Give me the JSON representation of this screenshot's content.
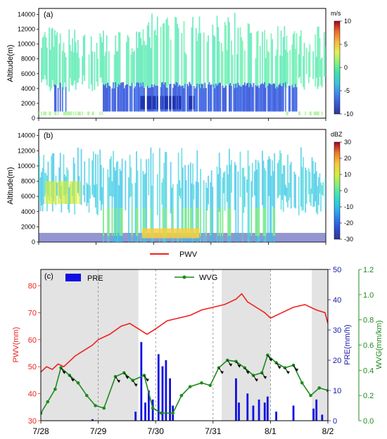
{
  "chart_data": [
    {
      "panel": "(a)",
      "type": "heatmap",
      "ylabel": "Altitude(m)",
      "yticks": [
        0,
        2000,
        4000,
        6000,
        8000,
        10000,
        12000,
        14000
      ],
      "ylim": [
        0,
        14800
      ],
      "colorbar": {
        "unit": "m/s",
        "ticks": [
          10,
          5,
          0,
          -5,
          -10
        ],
        "range": [
          -10,
          10
        ],
        "colors": [
          "#313695",
          "#3a57d6",
          "#3c8cf0",
          "#3ec5d8",
          "#39e3b0",
          "#8ff07a",
          "#e6f050",
          "#f7b73a",
          "#ef6a2a",
          "#a50026"
        ]
      },
      "features": [
        {
          "desc": "upper layer",
          "alt_range": [
            5000,
            12000
          ],
          "value_approx": 0
        },
        {
          "desc": "lower layer",
          "alt_range": [
            1000,
            5000
          ],
          "value_approx": -6
        },
        {
          "desc": "near surface",
          "alt_range": [
            400,
            900
          ],
          "value_approx": 1
        }
      ]
    },
    {
      "panel": "(b)",
      "type": "heatmap",
      "ylabel": "Altitude(m)",
      "yticks": [
        0,
        2000,
        4000,
        6000,
        8000,
        10000,
        12000,
        14000
      ],
      "ylim": [
        0,
        14800
      ],
      "colorbar": {
        "unit": "dBZ",
        "ticks": [
          30,
          20,
          10,
          0,
          -10,
          -20,
          -30
        ],
        "range": [
          -30,
          30
        ],
        "colors": [
          "#313695",
          "#2b4fd6",
          "#2a84f2",
          "#2fbfe8",
          "#36e2c4",
          "#7ff07c",
          "#d6ee3c",
          "#f7c93a",
          "#ef7a2a",
          "#a50026"
        ]
      }
    },
    {
      "panel": "(c)",
      "type": "line",
      "x_tick_labels": [
        "7/28",
        "7/29",
        "7/30",
        "7/31",
        "8/1",
        "8/2"
      ],
      "xlim": [
        "7/28",
        "8/2"
      ],
      "y_left": {
        "label": "PWV(mm)",
        "ticks": [
          30,
          40,
          50,
          60,
          70,
          80
        ],
        "lim": [
          30,
          86
        ],
        "color": "#e8231f"
      },
      "y_right1": {
        "label": "PRE(mm/h)",
        "ticks": [
          0,
          10,
          20,
          30,
          40,
          50
        ],
        "lim": [
          0,
          50
        ],
        "color": "#1a1aa8"
      },
      "y_right2": {
        "label": "WVG(mm/km)",
        "ticks": [
          "0.0",
          "0.2",
          "0.4",
          "0.6",
          "0.8",
          "1.0",
          "1.2"
        ],
        "lim": [
          0,
          1.2
        ],
        "color": "#1d8a1d"
      },
      "legend": {
        "pwv": "PWV",
        "pre": "PRE",
        "wvg": "WVG"
      },
      "series": [
        {
          "name": "PWV",
          "color": "#f0201e",
          "x": [
            0,
            0.1,
            0.2,
            0.3,
            0.4,
            0.5,
            0.6,
            0.75,
            0.9,
            1.0,
            1.2,
            1.4,
            1.55,
            1.7,
            1.85,
            2.0,
            2.2,
            2.4,
            2.6,
            2.8,
            3.0,
            3.2,
            3.4,
            3.5,
            3.6,
            3.75,
            3.9,
            4.0,
            4.2,
            4.4,
            4.6,
            4.8,
            4.95,
            5.0
          ],
          "y": [
            48,
            50,
            49,
            51,
            50,
            52,
            54,
            56,
            58,
            60,
            62,
            65,
            66,
            64,
            62,
            64,
            67,
            68,
            69,
            71,
            72,
            73,
            75,
            77,
            74,
            72,
            70,
            68,
            70,
            72,
            73,
            71,
            70,
            66
          ]
        },
        {
          "name": "WVG",
          "color": "#1d8a1d",
          "x": [
            0,
            0.12,
            0.25,
            0.35,
            0.5,
            0.65,
            0.8,
            0.95,
            1.1,
            1.3,
            1.45,
            1.6,
            1.8,
            1.95,
            2.1,
            2.3,
            2.45,
            2.6,
            2.8,
            2.95,
            3.1,
            3.25,
            3.4,
            3.55,
            3.7,
            3.85,
            3.95,
            4.1,
            4.25,
            4.4,
            4.55,
            4.7,
            4.85,
            5.0
          ],
          "y": [
            0.06,
            0.15,
            0.25,
            0.42,
            0.36,
            0.3,
            0.2,
            0.12,
            0.1,
            0.35,
            0.38,
            0.32,
            0.36,
            0.1,
            0.06,
            0.06,
            0.2,
            0.27,
            0.3,
            0.28,
            0.42,
            0.48,
            0.47,
            0.42,
            0.36,
            0.38,
            0.52,
            0.46,
            0.42,
            0.44,
            0.3,
            0.2,
            0.26,
            0.24
          ]
        },
        {
          "name": "PRE",
          "color": "#1010e0",
          "type": "bar",
          "x": [
            0.9,
            1.65,
            1.75,
            1.82,
            1.88,
            1.95,
            2.05,
            2.12,
            2.18,
            2.25,
            2.3,
            3.4,
            3.45,
            3.6,
            3.7,
            3.8,
            3.9,
            3.95,
            4.1,
            4.4,
            4.75,
            4.8,
            4.9
          ],
          "y": [
            0.5,
            3,
            26,
            6,
            10,
            7,
            22,
            18,
            20,
            14,
            5,
            14,
            6,
            9,
            5,
            7,
            6,
            8,
            3,
            5,
            4,
            7,
            2
          ]
        }
      ],
      "shaded_x_ranges": [
        [
          0,
          1.7
        ],
        [
          3.15,
          4.0
        ],
        [
          4.72,
          5.0
        ]
      ],
      "dashed_x": [
        1.0,
        2.0,
        3.0,
        4.0
      ]
    }
  ]
}
